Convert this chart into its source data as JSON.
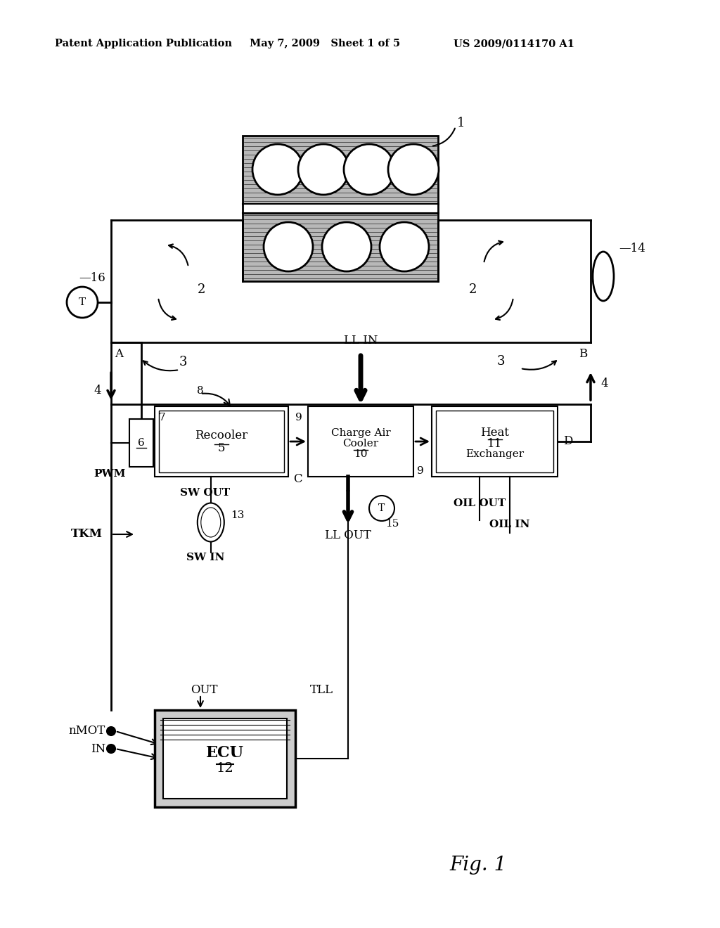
{
  "bg_color": "#ffffff",
  "header_text": "Patent Application Publication",
  "header_date": "May 7, 2009   Sheet 1 of 5",
  "header_patent": "US 2009/0114170 A1",
  "fig_label": "Fig. 1"
}
